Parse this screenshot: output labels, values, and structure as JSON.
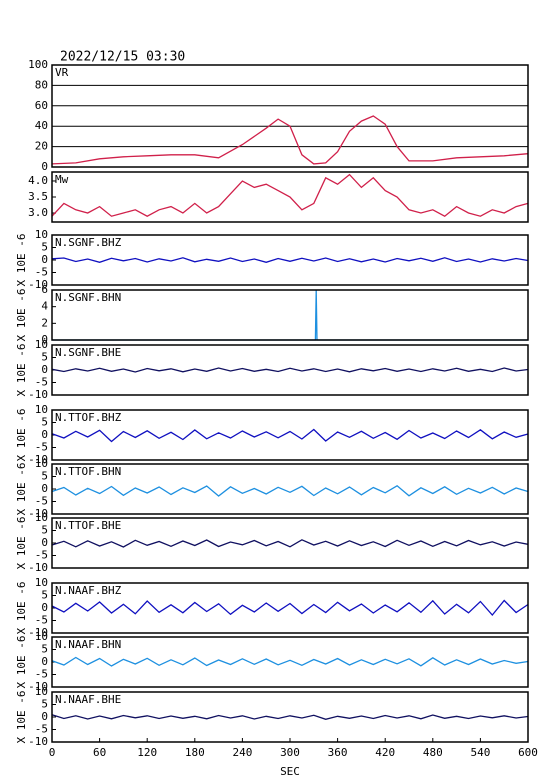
{
  "chart_data": [
    {
      "type": "line",
      "title": "2022/12/15 03:30",
      "label": "VR",
      "color": "#d0204a",
      "grid": true,
      "x": [
        0,
        30,
        60,
        90,
        120,
        150,
        180,
        210,
        240,
        270,
        285,
        300,
        315,
        330,
        345,
        360,
        375,
        390,
        405,
        420,
        435,
        450,
        480,
        510,
        540,
        570,
        600
      ],
      "values": [
        3,
        4,
        8,
        10,
        11,
        12,
        12,
        9,
        22,
        38,
        47,
        40,
        12,
        3,
        4,
        15,
        35,
        45,
        50,
        42,
        20,
        6,
        6,
        9,
        10,
        11,
        13
      ],
      "xlim": [
        0,
        600
      ],
      "ylim": [
        0,
        100
      ],
      "yticks": [
        0,
        20,
        40,
        60,
        80,
        100
      ]
    },
    {
      "type": "line",
      "label": "Mw",
      "color": "#d0204a",
      "x": [
        0,
        15,
        30,
        45,
        60,
        75,
        90,
        105,
        120,
        135,
        150,
        165,
        180,
        195,
        210,
        225,
        240,
        255,
        270,
        285,
        300,
        315,
        330,
        345,
        360,
        375,
        390,
        405,
        420,
        435,
        450,
        465,
        480,
        495,
        510,
        525,
        540,
        555,
        570,
        585,
        600
      ],
      "values": [
        2.9,
        3.3,
        3.1,
        3.0,
        3.2,
        2.9,
        3.0,
        3.1,
        2.9,
        3.1,
        3.2,
        3.0,
        3.3,
        3.0,
        3.2,
        3.6,
        4.0,
        3.8,
        3.9,
        3.7,
        3.5,
        3.1,
        3.3,
        4.1,
        3.9,
        4.2,
        3.8,
        4.1,
        3.7,
        3.5,
        3.1,
        3.0,
        3.1,
        2.9,
        3.2,
        3.0,
        2.9,
        3.1,
        3.0,
        3.2,
        3.3
      ],
      "xlim": [
        0,
        600
      ],
      "ylim": [
        2.72,
        4.28
      ],
      "yticks": [
        {
          "value": 3,
          "label": "3.0"
        },
        {
          "value": 3.5,
          "label": "3.5"
        },
        {
          "value": 4,
          "label": "4.0"
        }
      ]
    },
    {
      "type": "line",
      "label": "N.SGNF.BHZ",
      "ylabel": "X 10E -6",
      "color": "#1010c0",
      "x": [
        0,
        15,
        30,
        45,
        60,
        75,
        90,
        105,
        120,
        135,
        150,
        165,
        180,
        195,
        210,
        225,
        240,
        255,
        270,
        285,
        300,
        315,
        330,
        345,
        360,
        375,
        390,
        405,
        420,
        435,
        450,
        465,
        480,
        495,
        510,
        525,
        540,
        555,
        570,
        585,
        600
      ],
      "values": [
        0.5,
        0.8,
        -0.6,
        0.4,
        -0.9,
        0.7,
        -0.3,
        0.6,
        -0.8,
        0.5,
        -0.4,
        0.9,
        -0.7,
        0.3,
        -0.5,
        0.8,
        -0.6,
        0.4,
        -0.9,
        0.6,
        -0.5,
        0.7,
        -0.4,
        0.8,
        -0.6,
        0.5,
        -0.7,
        0.4,
        -0.8,
        0.6,
        -0.3,
        0.7,
        -0.5,
        0.9,
        -0.6,
        0.4,
        -0.8,
        0.5,
        -0.4,
        0.6,
        -0.2
      ],
      "xlim": [
        0,
        600
      ],
      "ylim": [
        -10,
        10
      ],
      "yticks": [
        -10,
        -5,
        0,
        5,
        10
      ]
    },
    {
      "type": "line",
      "label": "N.SGNF.BHN",
      "ylabel": "X 10E -6",
      "color": "#1e90e0",
      "x": [
        0,
        332,
        333,
        334,
        600
      ],
      "values": [
        0,
        0,
        6,
        0,
        0
      ],
      "xlim": [
        0,
        600
      ],
      "ylim": [
        0,
        6
      ],
      "yticks": [
        0,
        2,
        4,
        6
      ]
    },
    {
      "type": "line",
      "label": "N.SGNF.BHE",
      "ylabel": "X 10E -6",
      "color": "#101060",
      "x": [
        0,
        15,
        30,
        45,
        60,
        75,
        90,
        105,
        120,
        135,
        150,
        165,
        180,
        195,
        210,
        225,
        240,
        255,
        270,
        285,
        300,
        315,
        330,
        345,
        360,
        375,
        390,
        405,
        420,
        435,
        450,
        465,
        480,
        495,
        510,
        525,
        540,
        555,
        570,
        585,
        600
      ],
      "values": [
        0.3,
        -0.6,
        0.5,
        -0.4,
        0.7,
        -0.5,
        0.4,
        -0.8,
        0.6,
        -0.3,
        0.5,
        -0.7,
        0.4,
        -0.5,
        0.8,
        -0.4,
        0.6,
        -0.5,
        0.3,
        -0.6,
        0.7,
        -0.4,
        0.5,
        -0.6,
        0.4,
        -0.7,
        0.5,
        -0.3,
        0.6,
        -0.5,
        0.4,
        -0.6,
        0.5,
        -0.4,
        0.7,
        -0.5,
        0.3,
        -0.6,
        0.8,
        -0.4,
        0.2
      ],
      "xlim": [
        0,
        600
      ],
      "ylim": [
        -10,
        10
      ],
      "yticks": [
        -10,
        -5,
        0,
        5,
        10
      ]
    },
    {
      "type": "line",
      "label": "N.TTOF.BHZ",
      "ylabel": "X 10E -6",
      "color": "#1010c0",
      "x": [
        0,
        15,
        30,
        45,
        60,
        75,
        90,
        105,
        120,
        135,
        150,
        165,
        180,
        195,
        210,
        225,
        240,
        255,
        270,
        285,
        300,
        315,
        330,
        345,
        360,
        375,
        390,
        405,
        420,
        435,
        450,
        465,
        480,
        495,
        510,
        525,
        540,
        555,
        570,
        585,
        600
      ],
      "values": [
        0.5,
        -1.2,
        1.5,
        -0.8,
        1.9,
        -2.6,
        1.4,
        -1.0,
        1.7,
        -1.3,
        1.1,
        -1.8,
        2.0,
        -1.5,
        0.9,
        -1.2,
        1.6,
        -0.8,
        1.3,
        -1.1,
        1.4,
        -1.6,
        2.2,
        -2.4,
        1.2,
        -0.9,
        1.5,
        -1.3,
        1.0,
        -1.7,
        1.8,
        -1.2,
        0.8,
        -1.4,
        1.6,
        -1.0,
        2.1,
        -1.5,
        1.2,
        -0.9,
        0.4
      ],
      "xlim": [
        0,
        600
      ],
      "ylim": [
        -10,
        10
      ],
      "yticks": [
        -10,
        -5,
        0,
        5,
        10
      ]
    },
    {
      "type": "line",
      "label": "N.TTOF.BHN",
      "ylabel": "X 10E -6",
      "color": "#1e90e0",
      "x": [
        0,
        15,
        30,
        45,
        60,
        75,
        90,
        105,
        120,
        135,
        150,
        165,
        180,
        195,
        210,
        225,
        240,
        255,
        270,
        285,
        300,
        315,
        330,
        345,
        360,
        375,
        390,
        405,
        420,
        435,
        450,
        465,
        480,
        495,
        510,
        525,
        540,
        555,
        570,
        585,
        600
      ],
      "values": [
        -1.0,
        0.6,
        -2.4,
        0.3,
        -1.8,
        1.0,
        -2.5,
        0.4,
        -1.6,
        0.8,
        -2.2,
        0.5,
        -1.4,
        1.2,
        -2.8,
        0.9,
        -1.7,
        0.2,
        -2.0,
        0.7,
        -1.3,
        1.1,
        -2.6,
        0.4,
        -1.9,
        0.8,
        -2.3,
        0.6,
        -1.5,
        1.3,
        -2.7,
        0.5,
        -1.8,
        0.9,
        -2.1,
        0.3,
        -1.6,
        0.7,
        -2.0,
        0.4,
        -1.0
      ],
      "xlim": [
        0,
        600
      ],
      "ylim": [
        -10,
        10
      ],
      "yticks": [
        -10,
        -5,
        0,
        5,
        10
      ]
    },
    {
      "type": "line",
      "label": "N.TTOF.BHE",
      "ylabel": "X 10E -6",
      "color": "#101060",
      "x": [
        0,
        15,
        30,
        45,
        60,
        75,
        90,
        105,
        120,
        135,
        150,
        165,
        180,
        195,
        210,
        225,
        240,
        255,
        270,
        285,
        300,
        315,
        330,
        345,
        360,
        375,
        390,
        405,
        420,
        435,
        450,
        465,
        480,
        495,
        510,
        525,
        540,
        555,
        570,
        585,
        600
      ],
      "values": [
        -0.8,
        0.7,
        -1.5,
        0.9,
        -1.2,
        0.5,
        -1.6,
        1.1,
        -0.9,
        0.6,
        -1.3,
        0.8,
        -1.0,
        1.2,
        -1.4,
        0.4,
        -0.7,
        1.0,
        -1.1,
        0.6,
        -1.5,
        1.3,
        -0.8,
        0.7,
        -1.2,
        0.9,
        -1.0,
        0.5,
        -1.4,
        1.1,
        -0.9,
        0.8,
        -1.3,
        0.6,
        -1.1,
        1.0,
        -0.7,
        0.5,
        -1.2,
        0.4,
        -0.5
      ],
      "xlim": [
        0,
        600
      ],
      "ylim": [
        -10,
        10
      ],
      "yticks": [
        -10,
        -5,
        0,
        5,
        10
      ]
    },
    {
      "type": "line",
      "label": "N.NAAF.BHZ",
      "ylabel": "X 10E -6",
      "color": "#1010c0",
      "x": [
        0,
        15,
        30,
        45,
        60,
        75,
        90,
        105,
        120,
        135,
        150,
        165,
        180,
        195,
        210,
        225,
        240,
        255,
        270,
        285,
        300,
        315,
        330,
        345,
        360,
        375,
        390,
        405,
        420,
        435,
        450,
        465,
        480,
        495,
        510,
        525,
        540,
        555,
        570,
        585,
        600
      ],
      "values": [
        0.8,
        -1.6,
        1.9,
        -1.2,
        2.4,
        -2.0,
        1.5,
        -2.3,
        2.8,
        -1.7,
        1.3,
        -1.9,
        2.2,
        -1.4,
        1.7,
        -2.5,
        1.1,
        -1.6,
        2.0,
        -1.3,
        1.8,
        -2.2,
        1.4,
        -1.8,
        2.3,
        -1.1,
        1.6,
        -2.0,
        1.2,
        -1.5,
        2.1,
        -1.7,
        2.9,
        -2.4,
        1.5,
        -1.9,
        2.6,
        -2.8,
        3.0,
        -1.8,
        1.4
      ],
      "xlim": [
        0,
        600
      ],
      "ylim": [
        -10,
        10
      ],
      "yticks": [
        -10,
        -5,
        0,
        5,
        10
      ]
    },
    {
      "type": "line",
      "label": "N.NAAF.BHN",
      "ylabel": "X 10E -6",
      "color": "#1e90e0",
      "x": [
        0,
        15,
        30,
        45,
        60,
        75,
        90,
        105,
        120,
        135,
        150,
        165,
        180,
        195,
        210,
        225,
        240,
        255,
        270,
        285,
        300,
        315,
        330,
        345,
        360,
        375,
        390,
        405,
        420,
        435,
        450,
        465,
        480,
        495,
        510,
        525,
        540,
        555,
        570,
        585,
        600
      ],
      "values": [
        0.5,
        -1.2,
        1.8,
        -1.0,
        1.4,
        -1.6,
        1.1,
        -0.8,
        1.5,
        -1.3,
        0.9,
        -1.1,
        1.6,
        -1.4,
        0.8,
        -1.0,
        1.3,
        -0.9,
        1.2,
        -1.1,
        0.7,
        -1.3,
        1.0,
        -0.8,
        1.4,
        -1.2,
        0.9,
        -1.0,
        1.1,
        -0.7,
        1.3,
        -1.5,
        1.7,
        -1.2,
        0.9,
        -1.0,
        1.2,
        -0.8,
        0.6,
        -0.5,
        0.2
      ],
      "xlim": [
        0,
        600
      ],
      "ylim": [
        -10,
        10
      ],
      "yticks": [
        -10,
        -5,
        0,
        5,
        10
      ]
    },
    {
      "type": "line",
      "label": "N.NAAF.BHE",
      "ylabel": "X 10E -6",
      "color": "#101060",
      "xlabel": "SEC",
      "x": [
        0,
        15,
        30,
        45,
        60,
        75,
        90,
        105,
        120,
        135,
        150,
        165,
        180,
        195,
        210,
        225,
        240,
        255,
        270,
        285,
        300,
        315,
        330,
        345,
        360,
        375,
        390,
        405,
        420,
        435,
        450,
        465,
        480,
        495,
        510,
        525,
        540,
        555,
        570,
        585,
        600
      ],
      "values": [
        0.9,
        -0.6,
        0.5,
        -0.8,
        0.4,
        -0.7,
        0.6,
        -0.3,
        0.5,
        -0.6,
        0.4,
        -0.5,
        0.3,
        -0.7,
        0.6,
        -0.4,
        0.5,
        -0.8,
        0.3,
        -0.6,
        0.5,
        -0.4,
        0.7,
        -0.9,
        0.3,
        -0.5,
        0.4,
        -0.6,
        0.6,
        -0.4,
        0.5,
        -0.7,
        0.8,
        -0.5,
        0.3,
        -0.6,
        0.4,
        -0.3,
        0.5,
        -0.4,
        0.2
      ],
      "xlim": [
        0,
        600
      ],
      "ylim": [
        -10,
        10
      ],
      "yticks": [
        -10,
        -5,
        0,
        5,
        10
      ],
      "xticks": [
        0,
        60,
        120,
        180,
        240,
        300,
        360,
        420,
        480,
        540,
        600
      ]
    }
  ]
}
